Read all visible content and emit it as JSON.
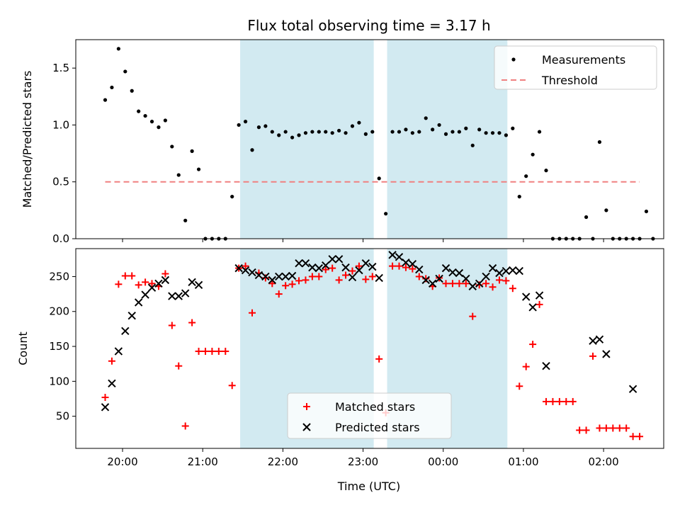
{
  "title": "Flux total observing time = 3.17 h",
  "xlabel": "Time (UTC)",
  "x_ticks": [
    "20:00",
    "21:00",
    "22:00",
    "23:00",
    "00:00",
    "01:00",
    "02:00"
  ],
  "colors": {
    "threshold": "#f08080",
    "matched": "#ff0000",
    "predicted": "#000000",
    "span": "#add8e6",
    "points": "#000000"
  },
  "chart_data": [
    {
      "type": "scatter",
      "ylabel": "Matched/Predicted stars",
      "ylim": [
        0,
        1.75
      ],
      "y_ticks": [
        "0.0",
        "0.5",
        "1.0",
        "1.5"
      ],
      "shaded_spans": [
        [
          "21:28",
          "23:08"
        ],
        [
          "23:18",
          "00:48"
        ]
      ],
      "legend": {
        "location": "top-right",
        "entries": [
          "Measurements",
          "Threshold"
        ]
      },
      "threshold": {
        "name": "Threshold",
        "value": 0.5,
        "x_range": [
          "19:47",
          "02:27"
        ]
      },
      "series": [
        {
          "name": "Measurements",
          "points": [
            [
              "19:47",
              1.22
            ],
            [
              "19:52",
              1.33
            ],
            [
              "19:57",
              1.67
            ],
            [
              "20:02",
              1.47
            ],
            [
              "20:07",
              1.3
            ],
            [
              "20:12",
              1.12
            ],
            [
              "20:17",
              1.08
            ],
            [
              "20:22",
              1.03
            ],
            [
              "20:27",
              0.98
            ],
            [
              "20:32",
              1.04
            ],
            [
              "20:37",
              0.81
            ],
            [
              "20:42",
              0.56
            ],
            [
              "20:47",
              0.16
            ],
            [
              "20:52",
              0.77
            ],
            [
              "20:57",
              0.61
            ],
            [
              "21:02",
              0.0
            ],
            [
              "21:07",
              0.0
            ],
            [
              "21:12",
              0.0
            ],
            [
              "21:17",
              0.0
            ],
            [
              "21:22",
              0.37
            ],
            [
              "21:27",
              1.0
            ],
            [
              "21:32",
              1.03
            ],
            [
              "21:37",
              0.78
            ],
            [
              "21:42",
              0.98
            ],
            [
              "21:47",
              0.99
            ],
            [
              "21:52",
              0.94
            ],
            [
              "21:57",
              0.91
            ],
            [
              "22:02",
              0.94
            ],
            [
              "22:07",
              0.89
            ],
            [
              "22:12",
              0.91
            ],
            [
              "22:17",
              0.93
            ],
            [
              "22:22",
              0.94
            ],
            [
              "22:27",
              0.94
            ],
            [
              "22:32",
              0.94
            ],
            [
              "22:37",
              0.93
            ],
            [
              "22:42",
              0.95
            ],
            [
              "22:47",
              0.93
            ],
            [
              "22:52",
              0.99
            ],
            [
              "22:57",
              1.02
            ],
            [
              "23:02",
              0.92
            ],
            [
              "23:07",
              0.94
            ],
            [
              "23:12",
              0.53
            ],
            [
              "23:17",
              0.22
            ],
            [
              "23:22",
              0.94
            ],
            [
              "23:27",
              0.94
            ],
            [
              "23:32",
              0.96
            ],
            [
              "23:37",
              0.93
            ],
            [
              "23:42",
              0.94
            ],
            [
              "23:47",
              1.06
            ],
            [
              "23:52",
              0.96
            ],
            [
              "23:57",
              1.0
            ],
            [
              "00:02",
              0.92
            ],
            [
              "00:07",
              0.94
            ],
            [
              "00:12",
              0.94
            ],
            [
              "00:17",
              0.97
            ],
            [
              "00:22",
              0.82
            ],
            [
              "00:27",
              0.96
            ],
            [
              "00:32",
              0.93
            ],
            [
              "00:37",
              0.93
            ],
            [
              "00:42",
              0.93
            ],
            [
              "00:47",
              0.91
            ],
            [
              "00:52",
              0.97
            ],
            [
              "00:57",
              0.37
            ],
            [
              "01:02",
              0.55
            ],
            [
              "01:07",
              0.74
            ],
            [
              "01:12",
              0.94
            ],
            [
              "01:17",
              0.6
            ],
            [
              "01:22",
              0.0
            ],
            [
              "01:27",
              0.0
            ],
            [
              "01:32",
              0.0
            ],
            [
              "01:37",
              0.0
            ],
            [
              "01:42",
              0.0
            ],
            [
              "01:47",
              0.19
            ],
            [
              "01:52",
              0.0
            ],
            [
              "01:57",
              0.85
            ],
            [
              "02:02",
              0.25
            ],
            [
              "02:07",
              0.0
            ],
            [
              "02:12",
              0.0
            ],
            [
              "02:17",
              0.0
            ],
            [
              "02:22",
              0.0
            ],
            [
              "02:27",
              0.0
            ],
            [
              "02:32",
              0.24
            ],
            [
              "02:37",
              0.0
            ]
          ]
        }
      ]
    },
    {
      "type": "scatter",
      "ylabel": "Count",
      "ylim": [
        4,
        290
      ],
      "y_ticks": [
        "50",
        "100",
        "150",
        "200",
        "250"
      ],
      "shaded_spans": [
        [
          "21:28",
          "23:08"
        ],
        [
          "23:18",
          "00:48"
        ]
      ],
      "legend": {
        "location": "lower-center",
        "entries": [
          "Matched stars",
          "Predicted stars"
        ]
      },
      "series": [
        {
          "name": "Matched stars",
          "points": [
            [
              "19:47",
              77
            ],
            [
              "19:52",
              129
            ],
            [
              "19:57",
              239
            ],
            [
              "20:02",
              251
            ],
            [
              "20:07",
              251
            ],
            [
              "20:12",
              238
            ],
            [
              "20:17",
              242
            ],
            [
              "20:22",
              240
            ],
            [
              "20:27",
              236
            ],
            [
              "20:32",
              254
            ],
            [
              "20:37",
              180
            ],
            [
              "20:42",
              122
            ],
            [
              "20:47",
              36
            ],
            [
              "20:52",
              184
            ],
            [
              "20:57",
              143
            ],
            [
              "21:02",
              143
            ],
            [
              "21:07",
              143
            ],
            [
              "21:12",
              143
            ],
            [
              "21:17",
              143
            ],
            [
              "21:22",
              94
            ],
            [
              "21:27",
              262
            ],
            [
              "21:32",
              265
            ],
            [
              "21:37",
              198
            ],
            [
              "21:42",
              255
            ],
            [
              "21:47",
              248
            ],
            [
              "21:52",
              240
            ],
            [
              "21:57",
              225
            ],
            [
              "22:02",
              237
            ],
            [
              "22:07",
              239
            ],
            [
              "22:12",
              244
            ],
            [
              "22:17",
              245
            ],
            [
              "22:22",
              250
            ],
            [
              "22:27",
              250
            ],
            [
              "22:32",
              260
            ],
            [
              "22:37",
              262
            ],
            [
              "22:42",
              245
            ],
            [
              "22:47",
              252
            ],
            [
              "22:52",
              258
            ],
            [
              "22:57",
              265
            ],
            [
              "23:02",
              246
            ],
            [
              "23:07",
              250
            ],
            [
              "23:12",
              132
            ],
            [
              "23:17",
              55
            ],
            [
              "23:22",
              265
            ],
            [
              "23:27",
              265
            ],
            [
              "23:32",
              263
            ],
            [
              "23:37",
              261
            ],
            [
              "23:42",
              250
            ],
            [
              "23:47",
              247
            ],
            [
              "23:52",
              236
            ],
            [
              "23:57",
              248
            ],
            [
              "00:02",
              240
            ],
            [
              "00:07",
              240
            ],
            [
              "00:12",
              240
            ],
            [
              "00:17",
              240
            ],
            [
              "00:22",
              193
            ],
            [
              "00:27",
              238
            ],
            [
              "00:32",
              240
            ],
            [
              "00:37",
              235
            ],
            [
              "00:42",
              245
            ],
            [
              "00:47",
              244
            ],
            [
              "00:52",
              233
            ],
            [
              "00:57",
              93
            ],
            [
              "01:02",
              121
            ],
            [
              "01:07",
              153
            ],
            [
              "01:12",
              210
            ],
            [
              "01:17",
              71
            ],
            [
              "01:22",
              71
            ],
            [
              "01:27",
              71
            ],
            [
              "01:32",
              71
            ],
            [
              "01:37",
              71
            ],
            [
              "01:42",
              30
            ],
            [
              "01:47",
              30
            ],
            [
              "01:52",
              136
            ],
            [
              "01:57",
              33
            ],
            [
              "02:02",
              33
            ],
            [
              "02:07",
              33
            ],
            [
              "02:12",
              33
            ],
            [
              "02:17",
              33
            ],
            [
              "02:22",
              21
            ],
            [
              "02:27",
              21
            ]
          ]
        },
        {
          "name": "Predicted stars",
          "points": [
            [
              "19:47",
              63
            ],
            [
              "19:52",
              97
            ],
            [
              "19:57",
              143
            ],
            [
              "20:02",
              172
            ],
            [
              "20:07",
              194
            ],
            [
              "20:12",
              213
            ],
            [
              "20:17",
              224
            ],
            [
              "20:22",
              234
            ],
            [
              "20:27",
              240
            ],
            [
              "20:32",
              245
            ],
            [
              "20:37",
              222
            ],
            [
              "20:42",
              222
            ],
            [
              "20:47",
              226
            ],
            [
              "20:52",
              242
            ],
            [
              "20:57",
              238
            ],
            [
              "21:27",
              262
            ],
            [
              "21:32",
              259
            ],
            [
              "21:37",
              256
            ],
            [
              "21:42",
              252
            ],
            [
              "21:47",
              250
            ],
            [
              "21:52",
              245
            ],
            [
              "21:57",
              250
            ],
            [
              "22:02",
              250
            ],
            [
              "22:07",
              251
            ],
            [
              "22:12",
              269
            ],
            [
              "22:17",
              269
            ],
            [
              "22:22",
              263
            ],
            [
              "22:27",
              262
            ],
            [
              "22:32",
              266
            ],
            [
              "22:37",
              275
            ],
            [
              "22:42",
              275
            ],
            [
              "22:47",
              263
            ],
            [
              "22:52",
              249
            ],
            [
              "22:57",
              259
            ],
            [
              "23:02",
              269
            ],
            [
              "23:07",
              264
            ],
            [
              "23:12",
              248
            ],
            [
              "23:22",
              281
            ],
            [
              "23:27",
              278
            ],
            [
              "23:32",
              270
            ],
            [
              "23:37",
              268
            ],
            [
              "23:42",
              260
            ],
            [
              "23:47",
              245
            ],
            [
              "23:52",
              240
            ],
            [
              "23:57",
              247
            ],
            [
              "00:02",
              262
            ],
            [
              "00:07",
              256
            ],
            [
              "00:12",
              255
            ],
            [
              "00:17",
              247
            ],
            [
              "00:22",
              236
            ],
            [
              "00:27",
              240
            ],
            [
              "00:32",
              250
            ],
            [
              "00:37",
              262
            ],
            [
              "00:42",
              255
            ],
            [
              "00:47",
              258
            ],
            [
              "00:52",
              259
            ],
            [
              "00:57",
              258
            ],
            [
              "01:02",
              221
            ],
            [
              "01:07",
              206
            ],
            [
              "01:12",
              223
            ],
            [
              "01:17",
              122
            ],
            [
              "01:52",
              158
            ],
            [
              "01:57",
              160
            ],
            [
              "02:02",
              139
            ],
            [
              "02:22",
              89
            ]
          ]
        }
      ]
    }
  ]
}
